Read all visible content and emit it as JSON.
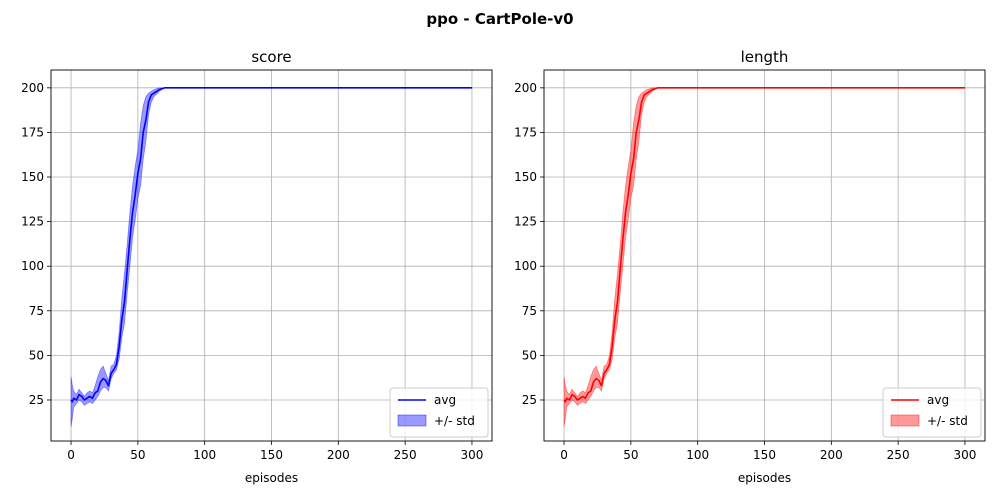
{
  "figure": {
    "suptitle": "ppo - CartPole-v0"
  },
  "chart_data": [
    {
      "type": "line",
      "title": "score",
      "xlabel": "episodes",
      "ylabel": "",
      "xlim": [
        -15,
        315
      ],
      "ylim": [
        2,
        210
      ],
      "xticks": [
        0,
        50,
        100,
        150,
        200,
        250,
        300
      ],
      "yticks": [
        25,
        50,
        75,
        100,
        125,
        150,
        175,
        200
      ],
      "grid": true,
      "legend_position": "lower-right",
      "color": "#0000ff",
      "series": [
        {
          "name": "avg",
          "x": [
            0,
            1,
            2,
            4,
            6,
            8,
            10,
            12,
            14,
            16,
            18,
            20,
            22,
            24,
            26,
            28,
            30,
            32,
            34,
            36,
            38,
            40,
            42,
            44,
            46,
            48,
            50,
            52,
            54,
            56,
            58,
            60,
            62,
            64,
            66,
            68,
            70,
            72,
            75,
            300
          ],
          "y": [
            25,
            24,
            26,
            25,
            28,
            27,
            25,
            26,
            27,
            26,
            29,
            30,
            35,
            37,
            36,
            33,
            40,
            42,
            45,
            55,
            70,
            80,
            98,
            115,
            130,
            140,
            152,
            160,
            175,
            182,
            192,
            196,
            197,
            198,
            199,
            199.5,
            200,
            200,
            200,
            200
          ]
        },
        {
          "name": "+/- std",
          "x": [
            0,
            1,
            2,
            4,
            6,
            8,
            10,
            12,
            14,
            16,
            18,
            20,
            22,
            24,
            26,
            28,
            30,
            32,
            34,
            36,
            38,
            40,
            42,
            44,
            46,
            48,
            50,
            52,
            54,
            56,
            58,
            60,
            62,
            64,
            66,
            68,
            70,
            72,
            75,
            300
          ],
          "upper": [
            38,
            33,
            30,
            28,
            31,
            29,
            27,
            29,
            30,
            29,
            33,
            38,
            42,
            44,
            40,
            36,
            44,
            45,
            50,
            63,
            82,
            96,
            112,
            130,
            145,
            156,
            165,
            180,
            190,
            195,
            197,
            198,
            199,
            199.5,
            200,
            200,
            200,
            200,
            200,
            200
          ],
          "lower": [
            10,
            15,
            21,
            23,
            25,
            24,
            22,
            23,
            24,
            23,
            25,
            27,
            30,
            32,
            32,
            30,
            37,
            40,
            42,
            48,
            60,
            68,
            85,
            100,
            116,
            126,
            138,
            145,
            160,
            170,
            185,
            192,
            195,
            196.5,
            198,
            199,
            200,
            200,
            200,
            200
          ]
        }
      ]
    },
    {
      "type": "line",
      "title": "length",
      "xlabel": "episodes",
      "ylabel": "",
      "xlim": [
        -15,
        315
      ],
      "ylim": [
        2,
        210
      ],
      "xticks": [
        0,
        50,
        100,
        150,
        200,
        250,
        300
      ],
      "yticks": [
        25,
        50,
        75,
        100,
        125,
        150,
        175,
        200
      ],
      "grid": true,
      "legend_position": "lower-right",
      "color": "#ff0000",
      "series": [
        {
          "name": "avg",
          "x": [
            0,
            1,
            2,
            4,
            6,
            8,
            10,
            12,
            14,
            16,
            18,
            20,
            22,
            24,
            26,
            28,
            30,
            32,
            34,
            36,
            38,
            40,
            42,
            44,
            46,
            48,
            50,
            52,
            54,
            56,
            58,
            60,
            62,
            64,
            66,
            68,
            70,
            72,
            75,
            300
          ],
          "y": [
            25,
            24,
            26,
            25,
            28,
            27,
            25,
            26,
            27,
            26,
            29,
            30,
            35,
            37,
            36,
            33,
            40,
            42,
            45,
            55,
            70,
            80,
            98,
            115,
            130,
            140,
            152,
            160,
            175,
            182,
            192,
            196,
            197,
            198,
            199,
            199.5,
            200,
            200,
            200,
            200
          ]
        },
        {
          "name": "+/- std",
          "x": [
            0,
            1,
            2,
            4,
            6,
            8,
            10,
            12,
            14,
            16,
            18,
            20,
            22,
            24,
            26,
            28,
            30,
            32,
            34,
            36,
            38,
            40,
            42,
            44,
            46,
            48,
            50,
            52,
            54,
            56,
            58,
            60,
            62,
            64,
            66,
            68,
            70,
            72,
            75,
            300
          ],
          "upper": [
            38,
            33,
            30,
            28,
            31,
            29,
            27,
            29,
            30,
            29,
            33,
            38,
            42,
            44,
            40,
            36,
            44,
            45,
            50,
            63,
            82,
            96,
            112,
            130,
            145,
            156,
            165,
            180,
            190,
            195,
            197,
            198,
            199,
            199.5,
            200,
            200,
            200,
            200,
            200,
            200
          ],
          "lower": [
            10,
            15,
            21,
            23,
            25,
            24,
            22,
            23,
            24,
            23,
            25,
            27,
            30,
            32,
            32,
            30,
            37,
            40,
            42,
            48,
            60,
            68,
            85,
            100,
            116,
            126,
            138,
            145,
            160,
            170,
            185,
            192,
            195,
            196.5,
            198,
            199,
            200,
            200,
            200,
            200
          ]
        }
      ]
    }
  ]
}
